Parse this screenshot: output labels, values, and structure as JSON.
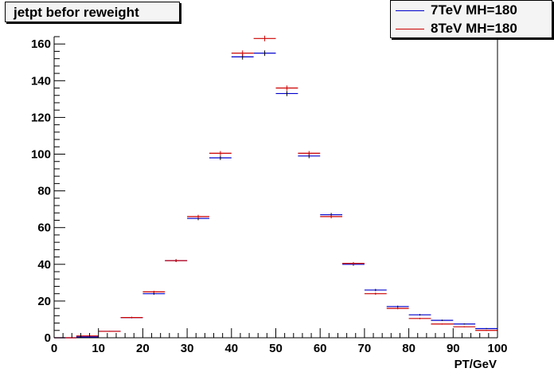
{
  "chart_data": {
    "type": "histogram",
    "title": "jetpt befor reweight",
    "xlabel": "PT/GeV",
    "ylabel": "",
    "xlim": [
      0,
      100
    ],
    "ylim": [
      0,
      164
    ],
    "bin_width": 5,
    "x_ticks": [
      0,
      10,
      20,
      30,
      40,
      50,
      60,
      70,
      80,
      90,
      100
    ],
    "y_ticks": [
      0,
      20,
      40,
      60,
      80,
      100,
      120,
      140,
      160
    ],
    "legend_position": "top-right",
    "series": [
      {
        "name": "7TeV MH=180",
        "color": "#0000cc",
        "values": [
          0,
          0.5,
          3.5,
          11,
          24,
          42,
          65,
          98,
          153,
          155,
          133,
          99,
          67,
          40,
          26,
          17,
          12.5,
          9.5,
          7.5,
          5
        ]
      },
      {
        "name": "8TeV MH=180",
        "color": "#cc0000",
        "values": [
          0,
          1,
          3.5,
          11,
          25,
          42,
          66,
          100.5,
          155,
          163,
          136,
          100.5,
          66,
          40.5,
          24,
          16,
          10.5,
          7.5,
          6,
          4
        ]
      }
    ]
  }
}
